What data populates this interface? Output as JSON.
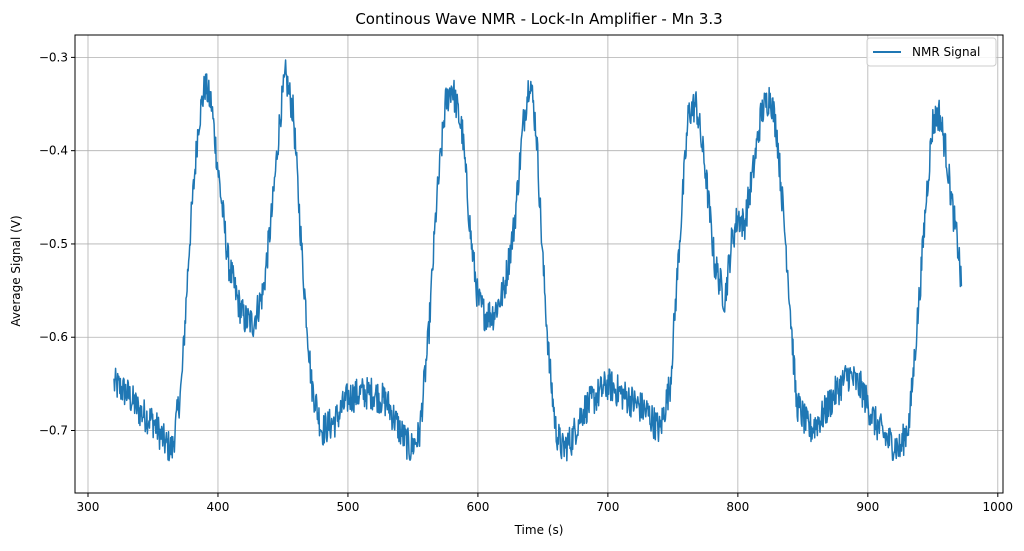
{
  "chart_data": {
    "type": "line",
    "title": "Continous Wave NMR - Lock-In Amplifier - Mn 3.3",
    "xlabel": "Time (s)",
    "ylabel": "Average Signal (V)",
    "xlim": [
      290,
      1004
    ],
    "ylim": [
      -0.767,
      -0.276
    ],
    "xticks": [
      300,
      400,
      500,
      600,
      700,
      800,
      900,
      1000
    ],
    "yticks": [
      -0.3,
      -0.4,
      -0.5,
      -0.6,
      -0.7
    ],
    "xtick_labels": [
      "300",
      "400",
      "500",
      "600",
      "700",
      "800",
      "900",
      "1000"
    ],
    "ytick_labels": [
      "−0.3",
      "−0.4",
      "−0.5",
      "−0.6",
      "−0.7"
    ],
    "grid": true,
    "legend_position": "top-right",
    "series": [
      {
        "name": "NMR Signal",
        "color": "#1f77b4",
        "noise_amplitude": 0.018,
        "x": [
          320,
          330,
          340,
          350,
          360,
          365,
          372,
          378,
          385,
          390,
          395,
          400,
          408,
          415,
          420,
          427,
          435,
          442,
          448,
          452,
          458,
          465,
          472,
          480,
          490,
          500,
          510,
          520,
          530,
          540,
          548,
          555,
          562,
          568,
          575,
          580,
          588,
          595,
          600,
          605,
          612,
          620,
          628,
          635,
          640,
          645,
          650,
          655,
          660,
          665,
          672,
          680,
          690,
          700,
          710,
          720,
          730,
          740,
          748,
          755,
          762,
          768,
          775,
          782,
          790,
          795,
          800,
          805,
          812,
          818,
          825,
          830,
          838,
          845,
          855,
          865,
          875,
          885,
          895,
          905,
          915,
          925,
          932,
          940,
          945,
          950,
          955,
          960,
          965,
          970,
          972
        ],
        "y": [
          -0.65,
          -0.66,
          -0.68,
          -0.69,
          -0.715,
          -0.72,
          -0.65,
          -0.5,
          -0.37,
          -0.33,
          -0.35,
          -0.42,
          -0.52,
          -0.56,
          -0.58,
          -0.585,
          -0.55,
          -0.46,
          -0.36,
          -0.32,
          -0.36,
          -0.52,
          -0.65,
          -0.7,
          -0.69,
          -0.665,
          -0.66,
          -0.66,
          -0.67,
          -0.7,
          -0.72,
          -0.705,
          -0.6,
          -0.46,
          -0.35,
          -0.33,
          -0.38,
          -0.5,
          -0.56,
          -0.575,
          -0.575,
          -0.55,
          -0.48,
          -0.37,
          -0.32,
          -0.38,
          -0.52,
          -0.63,
          -0.7,
          -0.72,
          -0.71,
          -0.68,
          -0.665,
          -0.65,
          -0.66,
          -0.67,
          -0.68,
          -0.7,
          -0.65,
          -0.5,
          -0.36,
          -0.35,
          -0.42,
          -0.52,
          -0.56,
          -0.5,
          -0.47,
          -0.48,
          -0.42,
          -0.36,
          -0.34,
          -0.38,
          -0.52,
          -0.67,
          -0.7,
          -0.685,
          -0.66,
          -0.64,
          -0.655,
          -0.69,
          -0.71,
          -0.72,
          -0.69,
          -0.55,
          -0.45,
          -0.37,
          -0.36,
          -0.4,
          -0.46,
          -0.51,
          -0.55
        ]
      }
    ]
  }
}
